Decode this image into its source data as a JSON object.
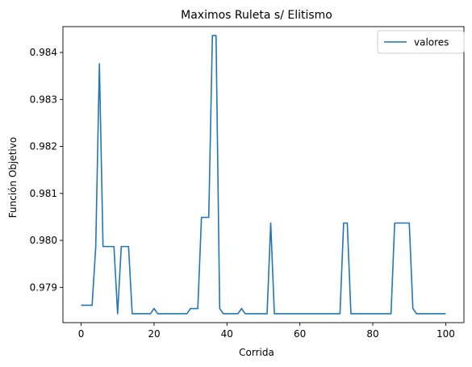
{
  "chart_data": {
    "type": "line",
    "title": "Maximos Ruleta s/ Elitismo",
    "xlabel": "Corrida",
    "ylabel": "Función Objetivo",
    "xlim": [
      -5,
      105
    ],
    "ylim": [
      0.97825,
      0.98455
    ],
    "xticks": [
      0,
      20,
      40,
      60,
      80,
      100
    ],
    "xtick_labels": [
      "0",
      "20",
      "40",
      "60",
      "80",
      "100"
    ],
    "yticks": [
      0.979,
      0.98,
      0.981,
      0.982,
      0.983,
      0.984
    ],
    "ytick_labels": [
      "0.979",
      "0.980",
      "0.981",
      "0.982",
      "0.983",
      "0.984"
    ],
    "grid": false,
    "legend": "top-right",
    "series": [
      {
        "name": "valores",
        "color": "#1f77b4",
        "x": [
          0,
          1,
          2,
          3,
          4,
          5,
          6,
          7,
          8,
          9,
          10,
          11,
          12,
          13,
          14,
          15,
          16,
          17,
          18,
          19,
          20,
          21,
          22,
          23,
          24,
          25,
          26,
          27,
          28,
          29,
          30,
          31,
          32,
          33,
          34,
          35,
          36,
          37,
          38,
          39,
          40,
          41,
          42,
          43,
          44,
          45,
          46,
          47,
          48,
          49,
          50,
          51,
          52,
          53,
          54,
          55,
          56,
          57,
          58,
          59,
          60,
          61,
          62,
          63,
          64,
          65,
          66,
          67,
          68,
          69,
          70,
          71,
          72,
          73,
          74,
          75,
          76,
          77,
          78,
          79,
          80,
          81,
          82,
          83,
          84,
          85,
          86,
          87,
          88,
          89,
          90,
          91,
          92,
          93,
          94,
          95,
          96,
          97,
          98,
          99,
          100
        ],
        "values": [
          0.97862,
          0.97862,
          0.97862,
          0.97862,
          0.97986,
          0.98376,
          0.97987,
          0.97987,
          0.97987,
          0.97987,
          0.97844,
          0.97987,
          0.97987,
          0.97987,
          0.97844,
          0.97844,
          0.97844,
          0.97844,
          0.97844,
          0.97844,
          0.97855,
          0.97844,
          0.97844,
          0.97844,
          0.97844,
          0.97844,
          0.97844,
          0.97844,
          0.97844,
          0.97844,
          0.97855,
          0.97855,
          0.97855,
          0.98049,
          0.98049,
          0.98049,
          0.98436,
          0.98436,
          0.97855,
          0.97844,
          0.97844,
          0.97844,
          0.97844,
          0.97844,
          0.97855,
          0.97844,
          0.97844,
          0.97844,
          0.97844,
          0.97844,
          0.97844,
          0.97844,
          0.98037,
          0.97844,
          0.97844,
          0.97844,
          0.97844,
          0.97844,
          0.97844,
          0.97844,
          0.97844,
          0.97844,
          0.97844,
          0.97844,
          0.97844,
          0.97844,
          0.97844,
          0.97844,
          0.97844,
          0.97844,
          0.97844,
          0.97844,
          0.98037,
          0.98037,
          0.97844,
          0.97844,
          0.97844,
          0.97844,
          0.97844,
          0.97844,
          0.97844,
          0.97844,
          0.97844,
          0.97844,
          0.97844,
          0.97844,
          0.98037,
          0.98037,
          0.98037,
          0.98037,
          0.98037,
          0.97855,
          0.97844,
          0.97844,
          0.97844,
          0.97844,
          0.97844,
          0.97844,
          0.97844,
          0.97844,
          0.97844
        ]
      }
    ]
  }
}
